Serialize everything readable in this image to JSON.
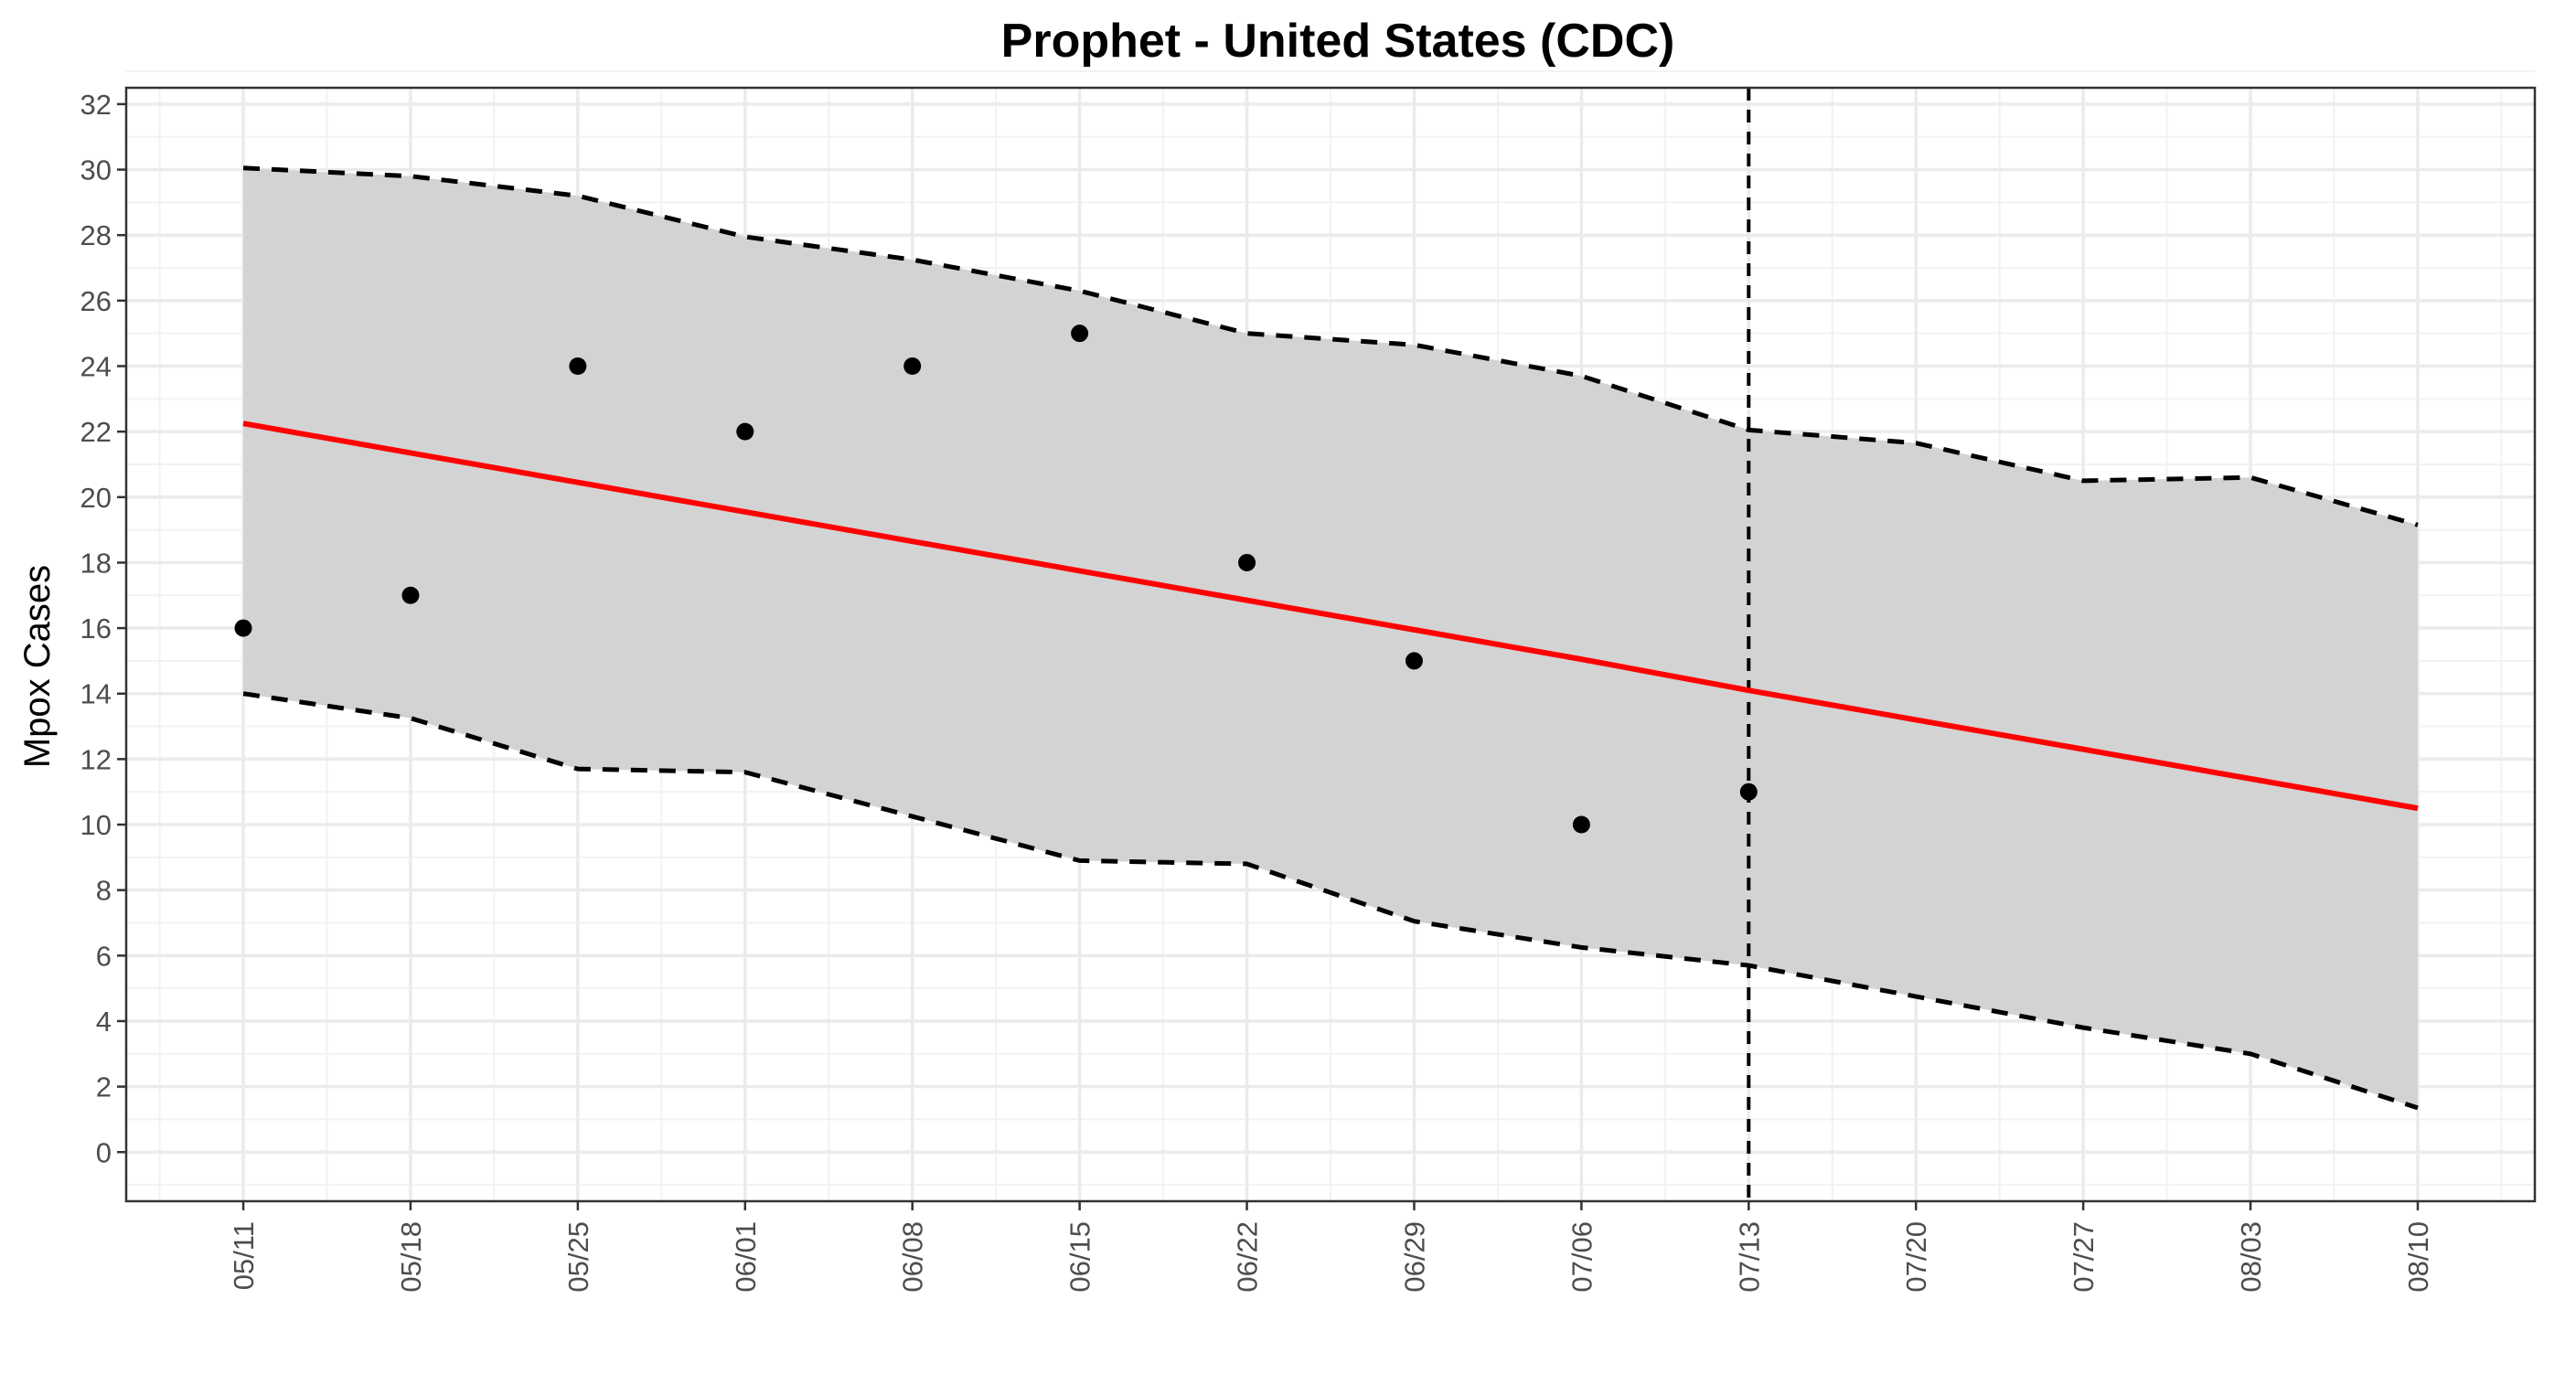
{
  "chart_data": {
    "type": "line",
    "title": "Prophet - United States (CDC)",
    "xlabel": "",
    "ylabel": "Mpox Cases",
    "x": [
      "05/11",
      "05/18",
      "05/25",
      "06/01",
      "06/08",
      "06/15",
      "06/22",
      "06/29",
      "07/06",
      "07/13",
      "07/20",
      "07/27",
      "08/03",
      "08/10"
    ],
    "ylim": [
      -1.5,
      32.5
    ],
    "yticks": [
      0,
      2,
      4,
      6,
      8,
      10,
      12,
      14,
      16,
      18,
      20,
      22,
      24,
      26,
      28,
      30,
      32
    ],
    "observed": {
      "x": [
        "05/11",
        "05/18",
        "05/25",
        "06/01",
        "06/08",
        "06/15",
        "06/22",
        "06/29",
        "07/06",
        "07/13"
      ],
      "values": [
        16,
        17,
        24,
        22,
        24,
        25,
        18,
        15,
        10,
        11
      ],
      "color": "#000000"
    },
    "forecast": {
      "values": [
        22.25,
        21.35,
        20.45,
        19.55,
        18.65,
        17.75,
        16.85,
        15.95,
        15.05,
        14.1,
        13.2,
        12.3,
        11.4,
        10.5
      ],
      "color": "#ff0000"
    },
    "upper": [
      30.05,
      29.8,
      29.2,
      27.95,
      27.25,
      26.3,
      25.0,
      24.65,
      23.7,
      22.05,
      21.65,
      20.5,
      20.6,
      19.15
    ],
    "lower": [
      14.0,
      13.25,
      11.7,
      11.6,
      10.25,
      8.9,
      8.8,
      7.05,
      6.25,
      5.7,
      4.75,
      3.8,
      3.0,
      1.35
    ],
    "band_color": "#d3d3d3",
    "vline_x": "07/13",
    "grid": true,
    "legend": "none"
  }
}
